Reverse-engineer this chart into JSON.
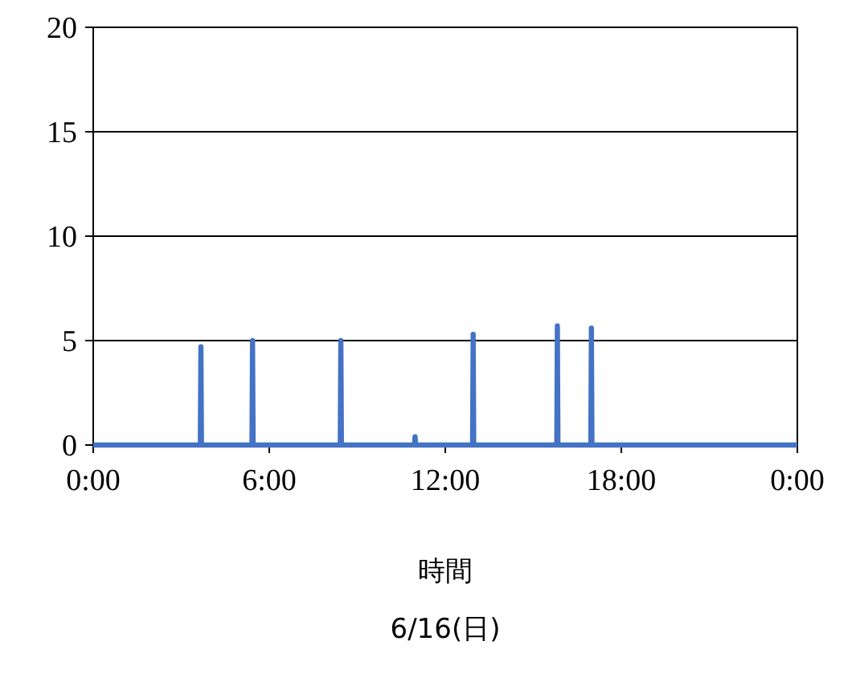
{
  "chart_data": {
    "type": "line",
    "xlabel": "時間",
    "annotations": [
      "6/16(日)"
    ],
    "x": [
      0,
      3.65,
      3.67,
      3.69,
      5.41,
      5.43,
      5.45,
      8.42,
      8.44,
      8.46,
      10.95,
      10.97,
      10.99,
      12.93,
      12.95,
      12.97,
      15.8,
      15.82,
      15.84,
      16.96,
      16.98,
      17,
      24
    ],
    "series": [
      {
        "color": "#4472c4",
        "values": [
          0,
          0,
          4.7,
          0,
          0,
          5,
          0,
          0,
          5,
          0,
          0,
          0.4,
          0,
          0,
          5.3,
          0,
          0,
          5.7,
          0,
          0,
          5.6,
          0,
          0
        ]
      }
    ],
    "xlim": [
      0,
      24
    ],
    "xticks": [
      {
        "value": 0,
        "label": "0:00"
      },
      {
        "value": 6,
        "label": "6:00"
      },
      {
        "value": 12,
        "label": "12:00"
      },
      {
        "value": 18,
        "label": "18:00"
      },
      {
        "value": 24,
        "label": "0:00"
      }
    ],
    "ylim": [
      0,
      20
    ],
    "yticks": [
      0,
      5,
      10,
      15,
      20
    ],
    "grid": "y",
    "marker": "none",
    "line_style": "solid"
  }
}
